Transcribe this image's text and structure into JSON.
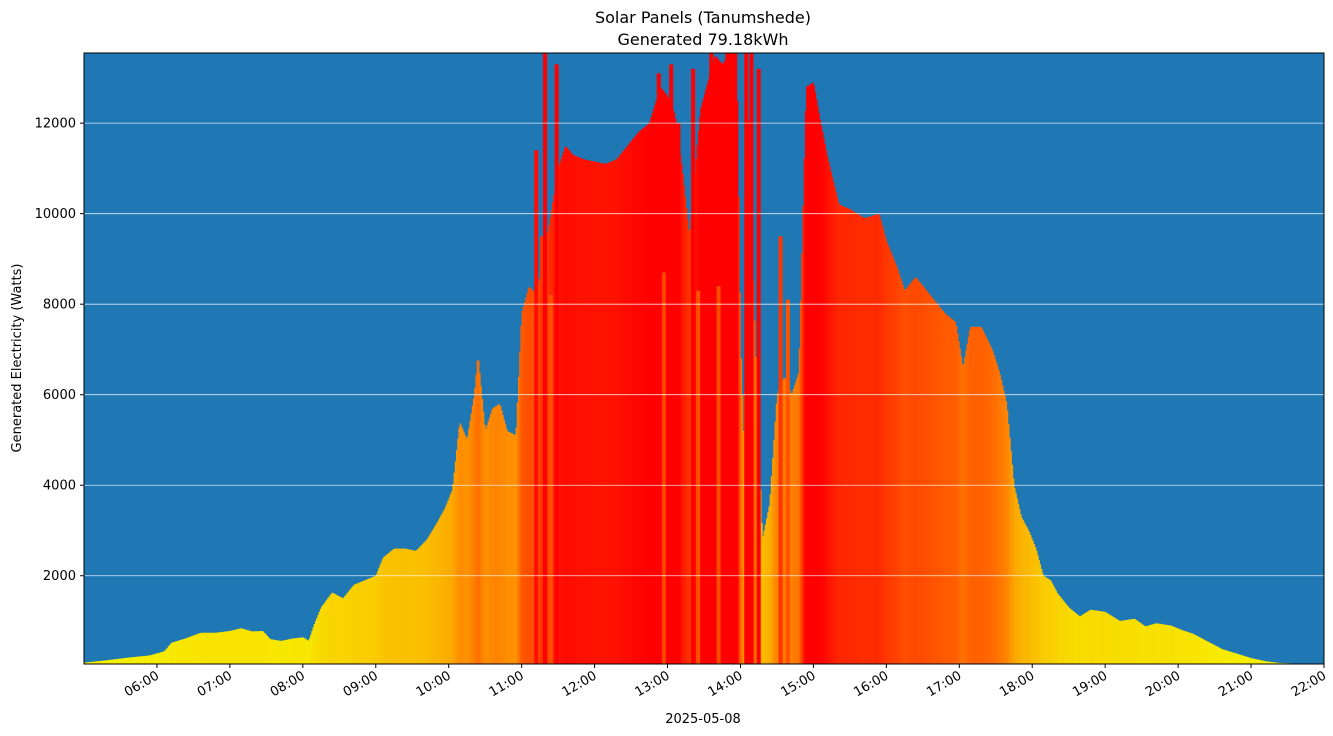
{
  "chart_data": {
    "type": "bar",
    "title": "Solar Panels (Tanumshede)",
    "subtitle": "Generated 79.18kWh",
    "xlabel": "2025-05-08",
    "ylabel": "Generated Electricity (Watts)",
    "x_range_hours": [
      5.0,
      22.0
    ],
    "ylim": [
      50,
      13550
    ],
    "y_ticks": [
      2000,
      4000,
      6000,
      8000,
      10000,
      12000
    ],
    "x_ticks": [
      "06:00",
      "07:00",
      "08:00",
      "09:00",
      "10:00",
      "11:00",
      "12:00",
      "13:00",
      "14:00",
      "15:00",
      "16:00",
      "17:00",
      "18:00",
      "19:00",
      "20:00",
      "21:00",
      "22:00"
    ],
    "x_tick_hours": [
      6,
      7,
      8,
      9,
      10,
      11,
      12,
      13,
      14,
      15,
      16,
      17,
      18,
      19,
      20,
      21,
      22
    ],
    "grid": "y",
    "background_color": "#1f77b4",
    "color_scale": {
      "low": "#f7f200",
      "mid": "#ff8000",
      "high": "#ff0000"
    },
    "profile": [
      [
        5.0,
        80
      ],
      [
        5.3,
        130
      ],
      [
        5.6,
        190
      ],
      [
        5.9,
        240
      ],
      [
        6.1,
        330
      ],
      [
        6.2,
        520
      ],
      [
        6.4,
        620
      ],
      [
        6.6,
        740
      ],
      [
        6.8,
        740
      ],
      [
        7.0,
        780
      ],
      [
        7.15,
        840
      ],
      [
        7.3,
        770
      ],
      [
        7.45,
        780
      ],
      [
        7.55,
        600
      ],
      [
        7.7,
        560
      ],
      [
        7.85,
        610
      ],
      [
        8.0,
        640
      ],
      [
        8.08,
        560
      ],
      [
        8.15,
        900
      ],
      [
        8.25,
        1300
      ],
      [
        8.4,
        1630
      ],
      [
        8.55,
        1500
      ],
      [
        8.7,
        1800
      ],
      [
        8.85,
        1900
      ],
      [
        9.0,
        2000
      ],
      [
        9.1,
        2400
      ],
      [
        9.25,
        2600
      ],
      [
        9.4,
        2600
      ],
      [
        9.55,
        2550
      ],
      [
        9.7,
        2800
      ],
      [
        9.85,
        3200
      ],
      [
        9.95,
        3500
      ],
      [
        10.05,
        3900
      ],
      [
        10.15,
        5400
      ],
      [
        10.25,
        5000
      ],
      [
        10.35,
        6000
      ],
      [
        10.4,
        6900
      ],
      [
        10.5,
        5200
      ],
      [
        10.6,
        5700
      ],
      [
        10.7,
        5800
      ],
      [
        10.8,
        5200
      ],
      [
        10.92,
        5100
      ],
      [
        11.0,
        7800
      ],
      [
        11.1,
        8400
      ],
      [
        11.2,
        8200
      ],
      [
        11.35,
        9500
      ],
      [
        11.5,
        11000
      ],
      [
        11.6,
        11500
      ],
      [
        11.7,
        11300
      ],
      [
        11.85,
        11200
      ],
      [
        12.0,
        11150
      ],
      [
        12.15,
        11100
      ],
      [
        12.3,
        11200
      ],
      [
        12.45,
        11500
      ],
      [
        12.6,
        11800
      ],
      [
        12.75,
        12000
      ],
      [
        12.9,
        12800
      ],
      [
        13.0,
        12600
      ],
      [
        13.1,
        12200
      ],
      [
        13.2,
        11000
      ],
      [
        13.3,
        9500
      ],
      [
        13.45,
        12300
      ],
      [
        13.55,
        12900
      ],
      [
        13.65,
        13500
      ],
      [
        13.75,
        13300
      ],
      [
        13.85,
        13550
      ],
      [
        13.95,
        13550
      ],
      [
        14.0,
        7200
      ],
      [
        14.05,
        4800
      ],
      [
        14.1,
        12500
      ],
      [
        14.2,
        7200
      ],
      [
        14.3,
        2800
      ],
      [
        14.4,
        3600
      ],
      [
        14.5,
        6000
      ],
      [
        14.6,
        6400
      ],
      [
        14.7,
        6000
      ],
      [
        14.8,
        6500
      ],
      [
        14.9,
        12800
      ],
      [
        15.0,
        12900
      ],
      [
        15.1,
        12000
      ],
      [
        15.2,
        11200
      ],
      [
        15.35,
        10200
      ],
      [
        15.5,
        10100
      ],
      [
        15.7,
        9900
      ],
      [
        15.9,
        10000
      ],
      [
        16.0,
        9400
      ],
      [
        16.15,
        8800
      ],
      [
        16.25,
        8300
      ],
      [
        16.4,
        8600
      ],
      [
        16.55,
        8300
      ],
      [
        16.7,
        8000
      ],
      [
        16.8,
        7800
      ],
      [
        16.95,
        7600
      ],
      [
        17.05,
        6600
      ],
      [
        17.15,
        7500
      ],
      [
        17.3,
        7500
      ],
      [
        17.45,
        7000
      ],
      [
        17.55,
        6500
      ],
      [
        17.65,
        5800
      ],
      [
        17.75,
        4000
      ],
      [
        17.85,
        3300
      ],
      [
        17.95,
        3000
      ],
      [
        18.05,
        2600
      ],
      [
        18.15,
        2000
      ],
      [
        18.25,
        1900
      ],
      [
        18.35,
        1600
      ],
      [
        18.5,
        1300
      ],
      [
        18.65,
        1100
      ],
      [
        18.8,
        1250
      ],
      [
        19.0,
        1200
      ],
      [
        19.2,
        1000
      ],
      [
        19.4,
        1050
      ],
      [
        19.55,
        880
      ],
      [
        19.7,
        950
      ],
      [
        19.9,
        900
      ],
      [
        20.05,
        800
      ],
      [
        20.2,
        720
      ],
      [
        20.4,
        550
      ],
      [
        20.6,
        380
      ],
      [
        20.8,
        280
      ],
      [
        21.0,
        180
      ],
      [
        21.2,
        110
      ],
      [
        21.4,
        70
      ],
      [
        21.6,
        60
      ],
      [
        22.0,
        55
      ]
    ],
    "spikes": [
      [
        11.2,
        11400
      ],
      [
        11.28,
        9500
      ],
      [
        11.32,
        13550
      ],
      [
        11.4,
        8200
      ],
      [
        11.48,
        13300
      ],
      [
        12.88,
        13100
      ],
      [
        12.95,
        8700
      ],
      [
        13.05,
        13300
      ],
      [
        13.15,
        12000
      ],
      [
        13.35,
        13200
      ],
      [
        13.42,
        8300
      ],
      [
        13.6,
        13550
      ],
      [
        13.7,
        8400
      ],
      [
        13.82,
        13550
      ],
      [
        13.9,
        13550
      ],
      [
        14.08,
        13550
      ],
      [
        14.15,
        13550
      ],
      [
        14.25,
        13200
      ],
      [
        14.55,
        9500
      ],
      [
        14.65,
        8100
      ]
    ]
  }
}
